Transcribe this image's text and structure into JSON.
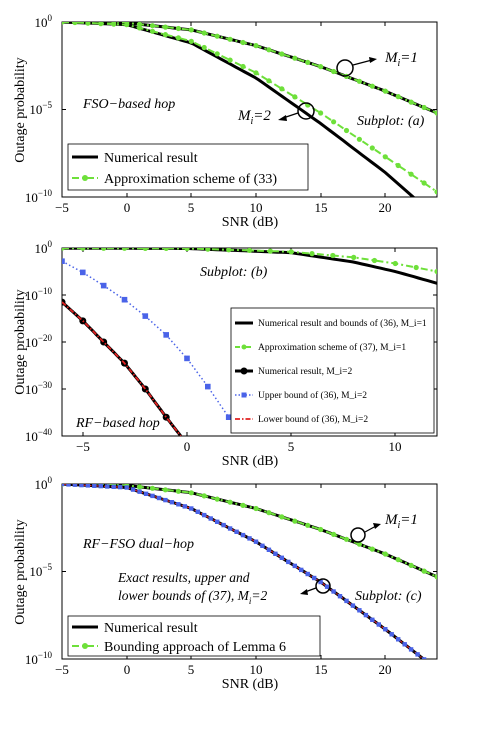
{
  "chart_data": [
    {
      "type": "line",
      "xlabel": "SNR (dB)",
      "ylabel": "Outage probability",
      "xlim": [
        -5,
        24
      ],
      "ylim_log10": [
        -10,
        0
      ],
      "log_y": true,
      "xticks": [
        -5,
        0,
        5,
        10,
        15,
        20
      ],
      "yticks": [
        "10^0",
        "10^-5",
        "10^-10"
      ],
      "legend_position": "bottom-left",
      "annotations": {
        "hop": "FSO−based hop",
        "subplot": "Subplot: (a)",
        "m1_label": "M_i=1",
        "m2_label": "M_i=2"
      },
      "series": [
        {
          "name": "Numerical result",
          "style": "black-solid",
          "x": [
            -5,
            0,
            5,
            10,
            15,
            20,
            24
          ],
          "log10_y": [
            0,
            -0.05,
            -0.45,
            -1.35,
            -2.55,
            -3.95,
            -5.2
          ]
        },
        {
          "name": "Approximation scheme of (33)",
          "style": "green-dashdot-circle",
          "x": [
            -5,
            0,
            5,
            10,
            15,
            20,
            24
          ],
          "log10_y": [
            0,
            -0.05,
            -0.45,
            -1.35,
            -2.55,
            -3.95,
            -5.2
          ]
        },
        {
          "name": "",
          "style": "black-solid",
          "x": [
            -5,
            0,
            5,
            10,
            15,
            20,
            24
          ],
          "log10_y": [
            0,
            -0.15,
            -1.2,
            -3.2,
            -5.8,
            -8.6,
            -11.2
          ]
        },
        {
          "name": "",
          "style": "green-dashdot-circle",
          "x": [
            -5,
            0,
            5,
            10,
            15,
            20,
            24
          ],
          "log10_y": [
            0,
            -0.15,
            -1.1,
            -2.9,
            -5.2,
            -7.7,
            -9.7
          ]
        }
      ]
    },
    {
      "type": "line",
      "xlabel": "SNR (dB)",
      "ylabel": "Outage probability",
      "xlim": [
        -6,
        12
      ],
      "ylim_log10": [
        -40,
        0
      ],
      "log_y": true,
      "xticks": [
        -5,
        0,
        5,
        10
      ],
      "yticks": [
        "10^0",
        "10^-10",
        "10^-20",
        "10^-30",
        "10^-40"
      ],
      "legend_position": "right",
      "annotations": {
        "hop": "RF−based hop",
        "subplot": "Subplot: (b)"
      },
      "series": [
        {
          "name": "Numerical result and bounds of (36), M_i=1",
          "style": "black-solid",
          "x": [
            -6,
            0,
            5,
            8,
            10,
            12
          ],
          "log10_y": [
            -0.04,
            -0.1,
            -1.0,
            -3.0,
            -5.0,
            -7.5
          ]
        },
        {
          "name": "Approximation scheme of (37), M_i=1",
          "style": "green-dashdot-circle",
          "x": [
            -6,
            0,
            5,
            8,
            10,
            12
          ],
          "log10_y": [
            -0.04,
            -0.1,
            -0.8,
            -2.0,
            -3.3,
            -5.0
          ]
        },
        {
          "name": "Numerical result, M_i=2",
          "style": "black-solid-circle",
          "x": [
            -6,
            -5,
            -4,
            -3,
            -2,
            -1,
            -0.3
          ],
          "log10_y": [
            -11.5,
            -15.5,
            -20,
            -24.5,
            -30,
            -36,
            -40
          ]
        },
        {
          "name": "Upper bound of (36), M_i=2",
          "style": "blue-dotted-square",
          "x": [
            -6,
            -5,
            -4,
            -3,
            -2,
            -1,
            0,
            1,
            2
          ],
          "log10_y": [
            -2.8,
            -5.2,
            -8,
            -11,
            -14.5,
            -18.5,
            -23.5,
            -29.5,
            -36
          ]
        },
        {
          "name": "Lower bound of (36), M_i=2",
          "style": "red-dashdot",
          "x": [
            -6,
            -5,
            -4,
            -3,
            -2,
            -1,
            -0.3
          ],
          "log10_y": [
            -11.5,
            -15.5,
            -20,
            -24.5,
            -30,
            -36,
            -40
          ]
        }
      ]
    },
    {
      "type": "line",
      "xlabel": "SNR (dB)",
      "ylabel": "Outage probability",
      "xlim": [
        -5,
        24
      ],
      "ylim_log10": [
        -10,
        0
      ],
      "log_y": true,
      "xticks": [
        -5,
        0,
        5,
        10,
        15,
        20
      ],
      "yticks": [
        "10^0",
        "10^-5",
        "10^-10"
      ],
      "legend_position": "bottom-left",
      "annotations": {
        "hop": "RF−FSO dual−hop",
        "subplot": "Subplot: (c)",
        "m1_label": "M_i=1",
        "exact_line1": "Exact results, upper and",
        "exact_line2": "lower bounds of (37), M_i=2"
      },
      "series": [
        {
          "name": "Numerical result",
          "style": "black-solid",
          "x": [
            -5,
            0,
            5,
            10,
            15,
            20,
            24
          ],
          "log10_y": [
            0,
            -0.08,
            -0.5,
            -1.4,
            -2.6,
            -4.0,
            -5.3
          ]
        },
        {
          "name": "Bounding approach of Lemma 6",
          "style": "green-dashdot-circle",
          "x": [
            -5,
            0,
            5,
            10,
            15,
            20,
            24
          ],
          "log10_y": [
            0,
            -0.08,
            -0.5,
            -1.4,
            -2.6,
            -4.0,
            -5.3
          ]
        },
        {
          "name": "",
          "style": "black-solid-blue-square",
          "x": [
            -5,
            0,
            5,
            10,
            15,
            20,
            24
          ],
          "log10_y": [
            0,
            -0.2,
            -1.4,
            -3.3,
            -5.6,
            -8.3,
            -10.6
          ]
        }
      ]
    }
  ]
}
